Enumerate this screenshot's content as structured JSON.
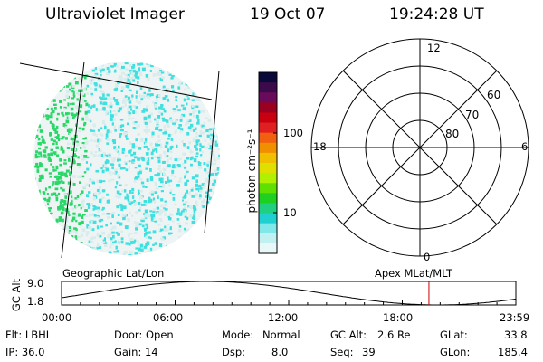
{
  "header": {
    "instrument": "Ultraviolet Imager",
    "date": "19 Oct 07",
    "time": "19:24:28 UT"
  },
  "colorbar": {
    "unit_label": "photon cm⁻²s⁻¹",
    "ticks": [
      "100",
      "10"
    ],
    "colors": [
      "#0a0a3a",
      "#3a0a4a",
      "#6a0a5a",
      "#9a0020",
      "#c80010",
      "#e02020",
      "#f06010",
      "#f09000",
      "#f0c000",
      "#e0e000",
      "#b0f000",
      "#60e000",
      "#20d020",
      "#20d080",
      "#20d0d0",
      "#80e8e8",
      "#c0f0f0",
      "#e8f8f8"
    ]
  },
  "left_panel": {
    "caption": "Geographic Lat/Lon",
    "accent_colors": {
      "green": "#2ad86a",
      "cyan": "#3fe0e0",
      "light": "#d8ecec"
    }
  },
  "right_panel": {
    "caption": "Apex MLat/MLT",
    "mlt_labels": {
      "top": "12",
      "bottom": "0",
      "left": "18",
      "right": "6"
    },
    "lat_labels": [
      "60",
      "70",
      "80"
    ]
  },
  "altitude_plot": {
    "ylabel": "GC Alt",
    "ytick_top": "9.0",
    "ytick_bottom": "1.8",
    "xticks": [
      "00:00",
      "06:00",
      "12:00",
      "18:00",
      "23:59"
    ],
    "current_marker_time": "19:24:28",
    "marker_color": "#cc0000"
  },
  "info": {
    "row1": {
      "flt": "Flt: LBHL",
      "door": "Door: Open",
      "mode_label": "Mode:",
      "mode_value": "Normal",
      "gcalt_label": "GC Alt:",
      "gcalt_value": "2.6 Re",
      "glat_label": "GLat:",
      "glat_value": "33.8"
    },
    "row2": {
      "ip": "IP: 36.0",
      "gain": "Gain: 14",
      "dsp_label": "Dsp:",
      "dsp_value": "8.0",
      "seq_label": "Seq:",
      "seq_value": "39",
      "glon_label": "GLon:",
      "glon_value": "185.4"
    }
  }
}
